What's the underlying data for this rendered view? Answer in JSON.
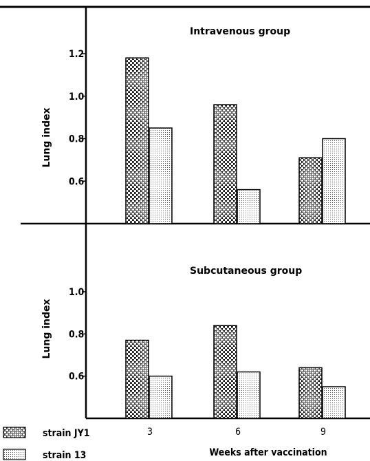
{
  "chart_data": [
    {
      "type": "bar",
      "title": "Intravenous group",
      "xlabel": "",
      "ylabel": "Lung index",
      "categories": [
        "3",
        "6",
        "9"
      ],
      "ylim": [
        0.4,
        1.4
      ],
      "yticks": [
        "1.2",
        "1.0",
        "0.8",
        "0.6"
      ],
      "ytick_values": [
        1.2,
        1.0,
        0.8,
        0.6
      ],
      "series": [
        {
          "name": "strain JY1",
          "values": [
            1.18,
            0.96,
            0.71
          ]
        },
        {
          "name": "strain 13",
          "values": [
            0.85,
            0.56,
            0.8
          ]
        }
      ]
    },
    {
      "type": "bar",
      "title": "Subcutaneous group",
      "xlabel": "Weeks after vaccination",
      "ylabel": "Lung index",
      "categories": [
        "3",
        "6",
        "9"
      ],
      "ylim": [
        0.4,
        1.2
      ],
      "yticks": [
        "1.0",
        "0.8",
        "0.6"
      ],
      "ytick_values": [
        1.0,
        0.8,
        0.6
      ],
      "series": [
        {
          "name": "strain JY1",
          "values": [
            0.77,
            0.84,
            0.64
          ]
        },
        {
          "name": "strain 13",
          "values": [
            0.6,
            0.62,
            0.55
          ]
        }
      ]
    }
  ],
  "legend": [
    {
      "label": "strain JY1",
      "pattern": "dense-checker"
    },
    {
      "label": "strain 13",
      "pattern": "fine-dots"
    }
  ],
  "colors": {
    "ink": "#000000",
    "paper": "#ffffff"
  }
}
